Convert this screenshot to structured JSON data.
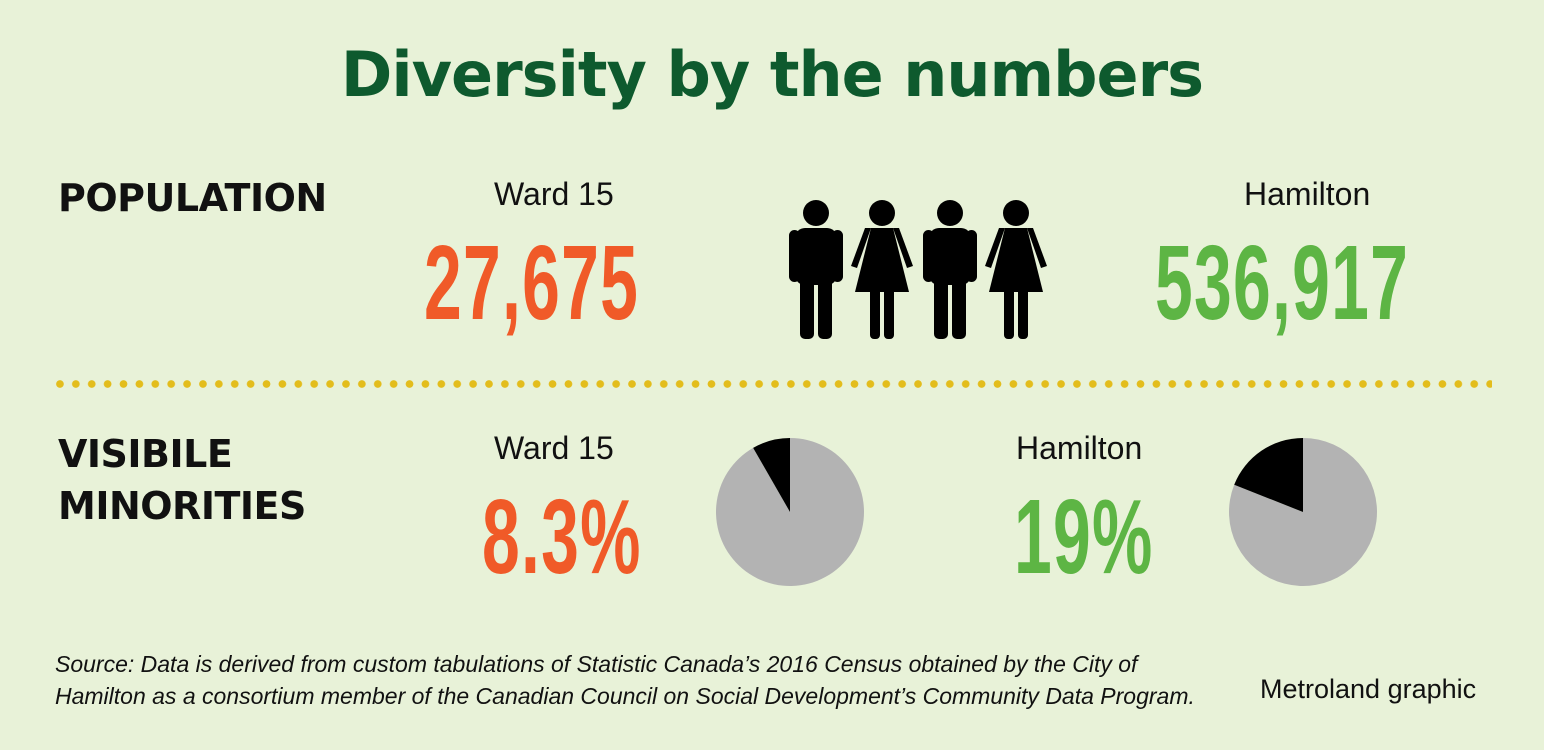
{
  "title": "Diversity by the numbers",
  "colors": {
    "background": "#e8f2d8",
    "title": "#0e5a2e",
    "ward": "#f05a28",
    "hamilton": "#5db544",
    "divider": "#e3bd1c",
    "pie_minority": "#000000",
    "pie_rest": "#b3b3b3"
  },
  "icons": [
    "person-male-icon",
    "person-female-icon",
    "person-male-icon",
    "person-female-icon"
  ],
  "population": {
    "label": "POPULATION",
    "ward_label": "Ward 15",
    "ward_value": "27,675",
    "hamilton_label": "Hamilton",
    "hamilton_value": "536,917"
  },
  "minorities": {
    "label_line1": "VISIBILE",
    "label_line2": "MINORITIES",
    "ward_label": "Ward 15",
    "ward_value": "8.3%",
    "hamilton_label": "Hamilton",
    "hamilton_value": "19%"
  },
  "chart_data": {
    "type": "pie",
    "charts": [
      {
        "label": "Ward 15",
        "slices": [
          {
            "value": 8.3
          },
          {
            "value": 91.7
          }
        ]
      },
      {
        "label": "Hamilton",
        "slices": [
          {
            "value": 19
          },
          {
            "value": 81
          }
        ]
      }
    ]
  },
  "source": {
    "line1": "Source: Data is derived from custom tabulations of Statistic Canada’s 2016 Census obtained by the City of",
    "line2": "Hamilton as a consortium member of the Canadian Council on Social Development’s Community Data Program."
  },
  "credit": "Metroland graphic"
}
